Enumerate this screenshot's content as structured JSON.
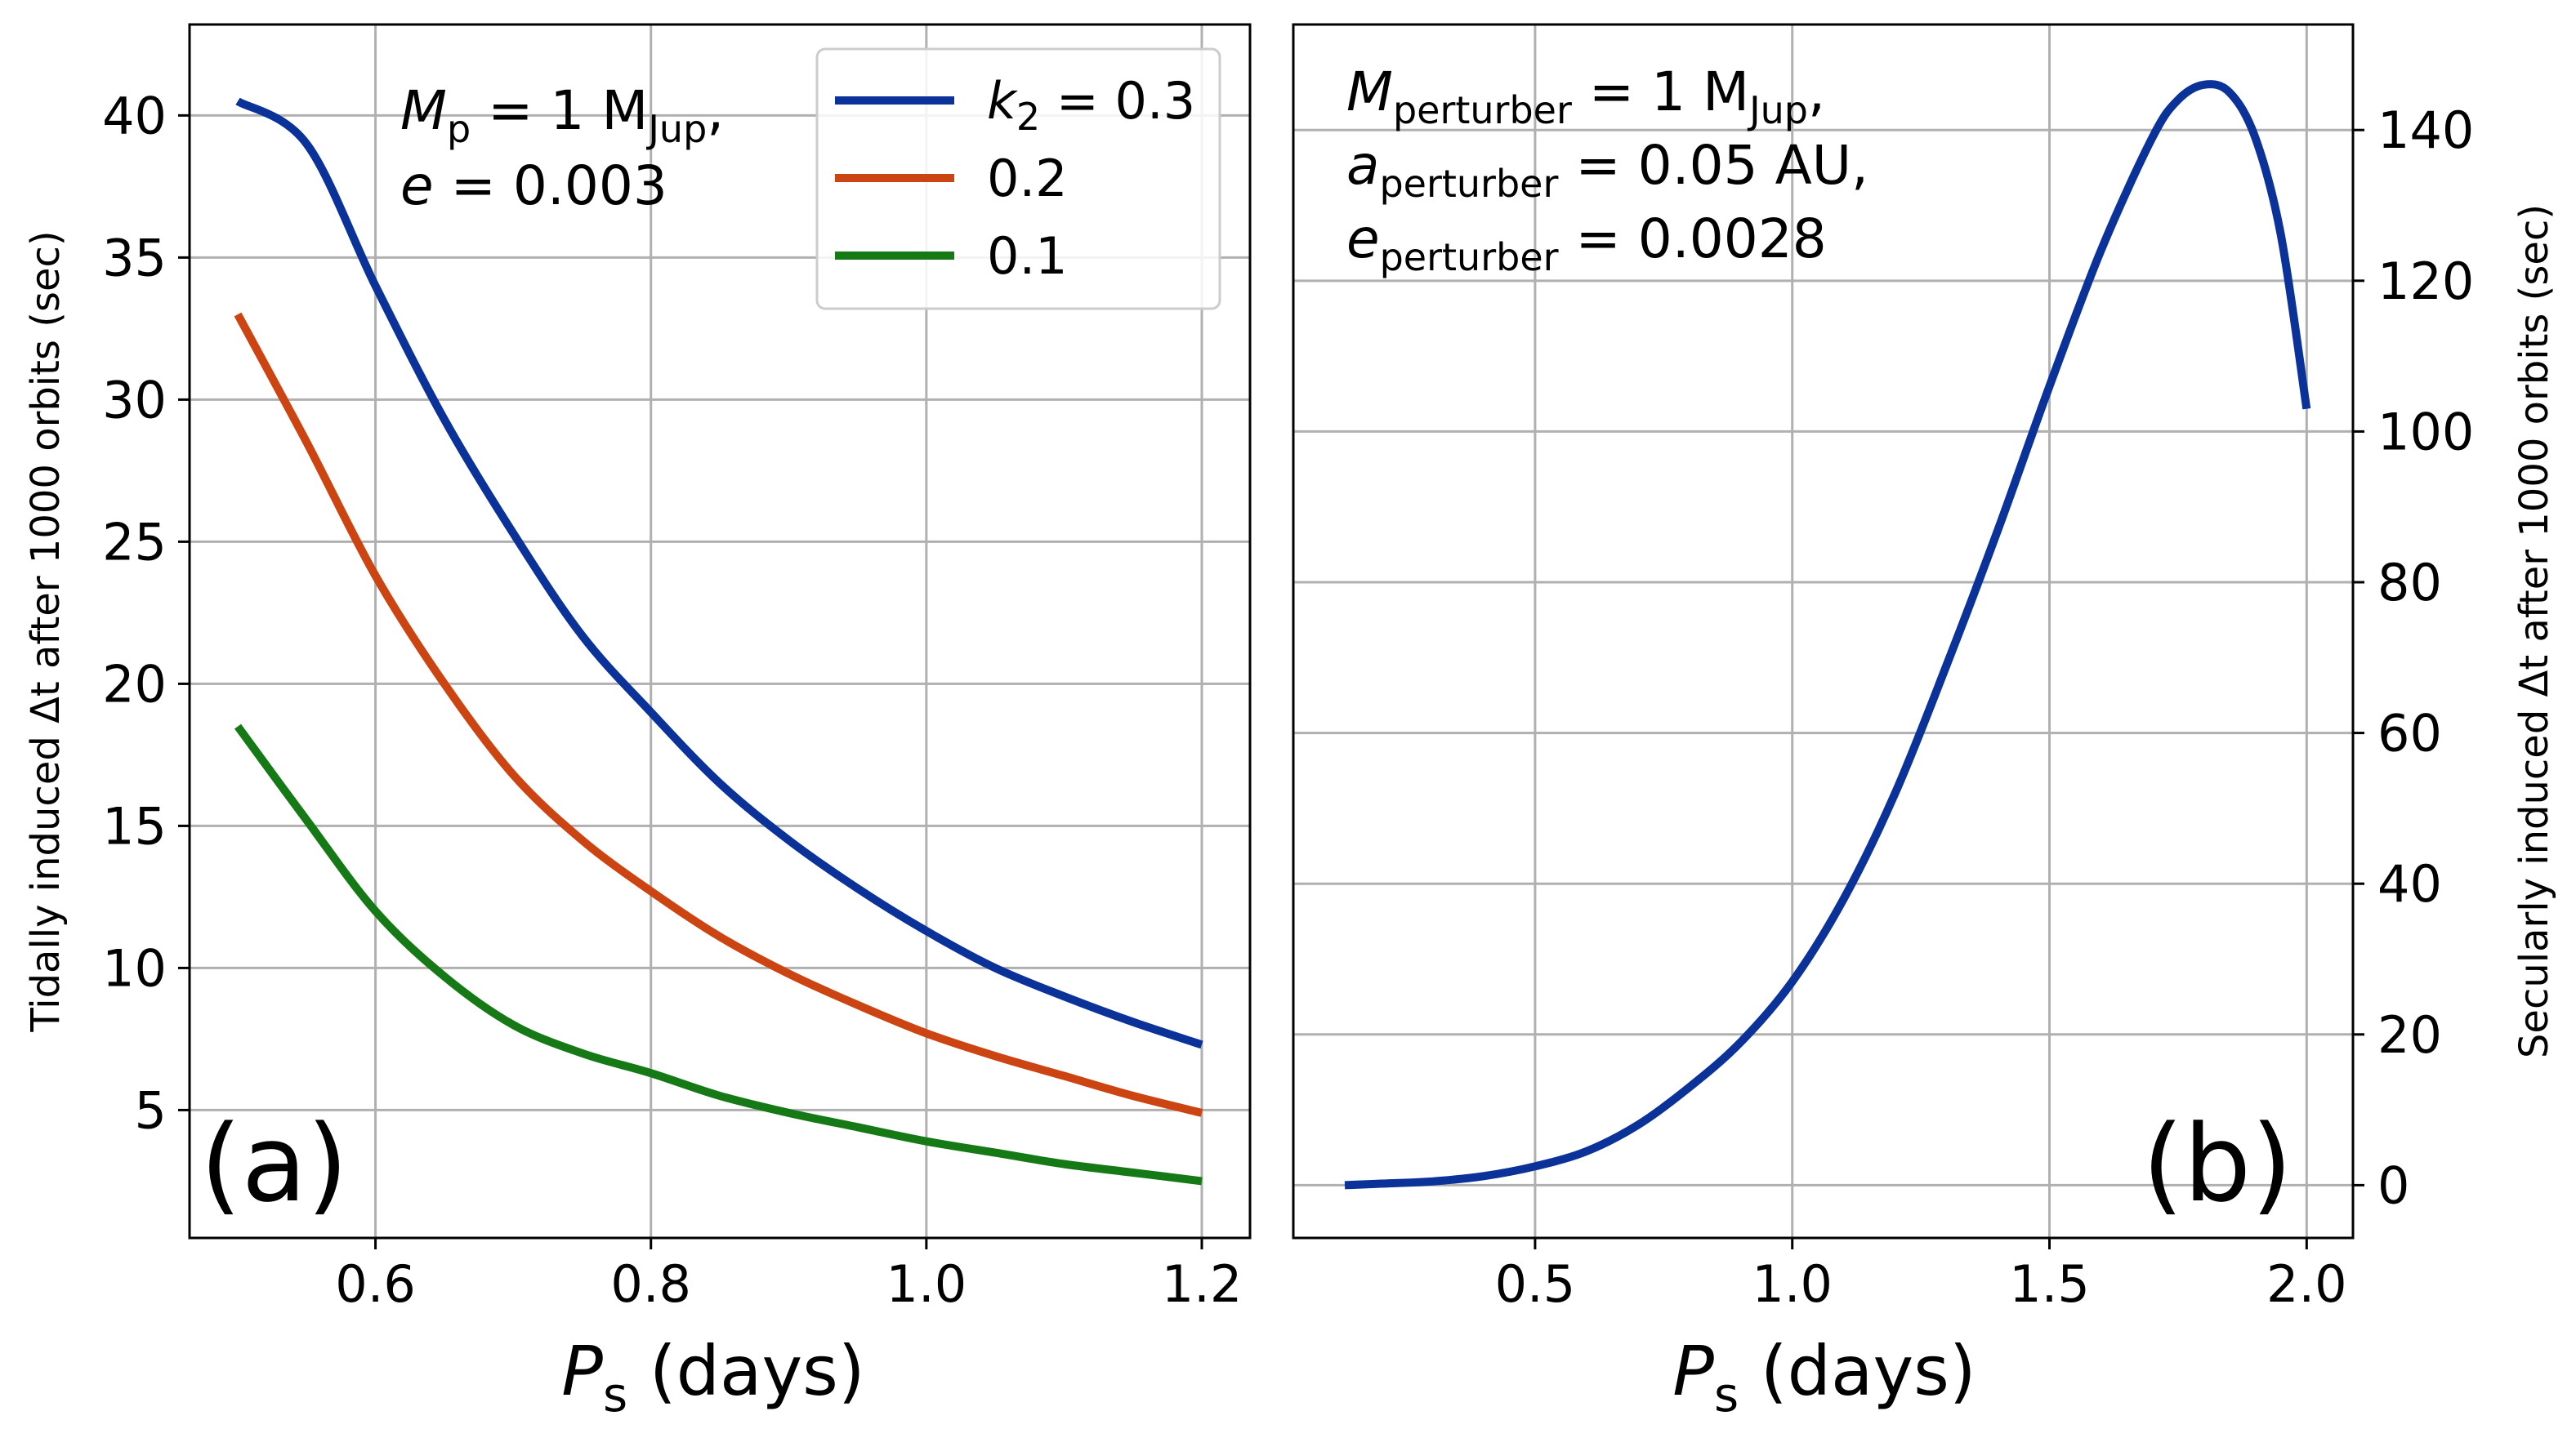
{
  "colors": {
    "blue": "#0a3299",
    "orange": "#cc4411",
    "green": "#157a15"
  },
  "chart_data": [
    {
      "type": "line",
      "panel_label": "(a)",
      "xlabel_main": "P",
      "xlabel_sub": "s",
      "xlabel_rest": " (days)",
      "ylabel": "Tidally induced Δt after 1000 orbits  (sec)",
      "xlim": [
        0.465,
        1.235
      ],
      "ylim": [
        0.5,
        43.2
      ],
      "xticks": [
        0.6,
        0.8,
        1.0,
        1.2
      ],
      "xtick_labels": [
        "0.6",
        "0.8",
        "1.0",
        "1.2"
      ],
      "yticks": [
        5,
        10,
        15,
        20,
        25,
        30,
        35,
        40
      ],
      "ytick_labels": [
        "5",
        "10",
        "15",
        "20",
        "25",
        "30",
        "35",
        "40"
      ],
      "grid": true,
      "annotation": {
        "line1_var": "M",
        "line1_sub": "p",
        "line1_eq": " = 1 M",
        "line1_unit_sub": "Jup",
        "line1_end": ",",
        "line2_var": "e",
        "line2_eq": " = 0.003"
      },
      "legend": {
        "position": "top-right",
        "first_var": "k",
        "first_sub": "2",
        "first_eq": " = 0.3"
      },
      "x": [
        0.5,
        0.55,
        0.6,
        0.65,
        0.7,
        0.75,
        0.8,
        0.85,
        0.9,
        0.95,
        1.0,
        1.05,
        1.1,
        1.15,
        1.2
      ],
      "series": [
        {
          "name": "k2 = 0.3",
          "label": "",
          "color": "#0a3299",
          "values": [
            40.5,
            39.0,
            34.0,
            29.3,
            25.3,
            21.7,
            19.0,
            16.5,
            14.5,
            12.8,
            11.3,
            10.0,
            9.0,
            8.1,
            7.3
          ]
        },
        {
          "name": "0.2",
          "label": "0.2",
          "color": "#cc4411",
          "values": [
            33.0,
            28.5,
            23.8,
            20.0,
            16.8,
            14.5,
            12.7,
            11.1,
            9.8,
            8.7,
            7.7,
            6.9,
            6.2,
            5.5,
            4.9
          ]
        },
        {
          "name": "0.1",
          "label": "0.1",
          "color": "#157a15",
          "values": [
            18.5,
            15.2,
            12.0,
            9.7,
            8.0,
            7.0,
            6.3,
            5.5,
            4.9,
            4.4,
            3.9,
            3.5,
            3.1,
            2.8,
            2.5
          ]
        }
      ]
    },
    {
      "type": "line",
      "panel_label": "(b)",
      "xlabel_main": "P",
      "xlabel_sub": "s",
      "xlabel_rest": " (days)",
      "ylabel": "Secularly induced Δt after 1000 orbits  (sec)",
      "xlim": [
        0.03,
        2.09
      ],
      "ylim": [
        -7,
        154
      ],
      "xticks": [
        0.5,
        1.0,
        1.5,
        2.0
      ],
      "xtick_labels": [
        "0.5",
        "1.0",
        "1.5",
        "2.0"
      ],
      "yticks": [
        0,
        20,
        40,
        60,
        80,
        100,
        120,
        140
      ],
      "ytick_labels": [
        "0",
        "20",
        "40",
        "60",
        "80",
        "100",
        "120",
        "140"
      ],
      "grid": true,
      "annotation": {
        "l1_var": "M",
        "l1_sub": "perturber",
        "l1_eq": " = 1 M",
        "l1_unit_sub": "Jup",
        "l1_end": ",",
        "l2_var": "a",
        "l2_sub": "perturber",
        "l2_eq": " = 0.05 AU,",
        "l3_var": "e",
        "l3_sub": "perturber",
        "l3_eq": " = 0.0028"
      },
      "series": [
        {
          "name": "secular",
          "color": "#0a3299",
          "x": [
            0.13,
            0.2,
            0.3,
            0.4,
            0.5,
            0.6,
            0.7,
            0.8,
            0.9,
            1.0,
            1.1,
            1.2,
            1.3,
            1.4,
            1.5,
            1.6,
            1.7,
            1.75,
            1.8,
            1.85,
            1.9,
            1.95,
            2.0
          ],
          "values": [
            0,
            0.2,
            0.5,
            1.2,
            2.5,
            4.5,
            8,
            13,
            19,
            27,
            38,
            52,
            69,
            87,
            106,
            124,
            139,
            144,
            146,
            145,
            139,
            126,
            103
          ]
        }
      ]
    }
  ]
}
